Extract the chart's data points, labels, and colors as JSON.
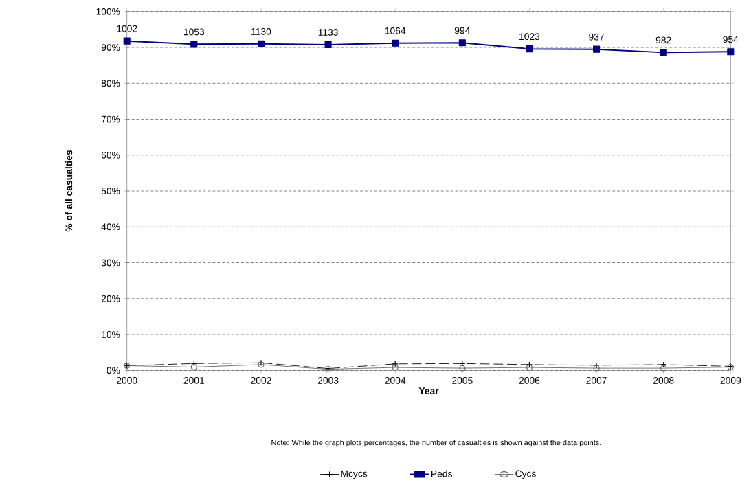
{
  "chart_data": {
    "type": "line",
    "xlabel": "Year",
    "ylabel": "% of all casualties",
    "categories": [
      "2000",
      "2001",
      "2002",
      "2003",
      "2004",
      "2005",
      "2006",
      "2007",
      "2008",
      "2009"
    ],
    "series": [
      {
        "name": "Mcycs",
        "color": "#000000",
        "marker": "cross",
        "line_style": "dashed",
        "values": [
          1.3,
          1.9,
          2.1,
          0.5,
          1.8,
          1.9,
          1.6,
          1.4,
          1.6,
          1.1
        ]
      },
      {
        "name": "Peds",
        "color": "#000080",
        "marker": "square",
        "line_style": "solid",
        "values": [
          91.8,
          90.9,
          91.0,
          90.8,
          91.2,
          91.3,
          89.6,
          89.5,
          88.6,
          88.8
        ]
      },
      {
        "name": "Cycs",
        "color": "#606060",
        "marker": "circle",
        "line_style": "solid",
        "values": [
          1.3,
          0.9,
          1.6,
          0.3,
          0.8,
          0.6,
          0.8,
          0.6,
          0.6,
          0.9
        ]
      }
    ],
    "ylim": [
      0,
      100
    ],
    "yticks": [
      {
        "value": 0,
        "label": "0%"
      },
      {
        "value": 10,
        "label": "10%"
      },
      {
        "value": 20,
        "label": "20%"
      },
      {
        "value": 30,
        "label": "30%"
      },
      {
        "value": 40,
        "label": "40%"
      },
      {
        "value": 50,
        "label": "50%"
      },
      {
        "value": 60,
        "label": "60%"
      },
      {
        "value": 70,
        "label": "70%"
      },
      {
        "value": 80,
        "label": "80%"
      },
      {
        "value": 90,
        "label": "90%"
      },
      {
        "value": 100,
        "label": "100%"
      }
    ],
    "grid": "y",
    "legend": "bottom",
    "annotations": [
      {
        "text": "1002",
        "x": "2000",
        "y": 91.8
      },
      {
        "text": "1053",
        "x": "2001",
        "y": 90.9
      },
      {
        "text": "1130",
        "x": "2002",
        "y": 91.0
      },
      {
        "text": "1133",
        "x": "2003",
        "y": 90.8
      },
      {
        "text": "1064",
        "x": "2004",
        "y": 91.2
      },
      {
        "text": "994",
        "x": "2005",
        "y": 91.3
      },
      {
        "text": "1023",
        "x": "2006",
        "y": 89.6
      },
      {
        "text": "937",
        "x": "2007",
        "y": 89.5
      },
      {
        "text": "982",
        "x": "2008",
        "y": 88.6
      },
      {
        "text": "954",
        "x": "2009",
        "y": 88.8
      },
      "Note:  While the graph plots percentages, the number of casualties is shown against the data points."
    ]
  }
}
